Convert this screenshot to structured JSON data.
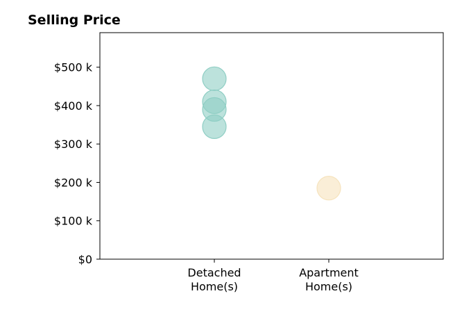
{
  "chart_data": {
    "type": "scatter",
    "title": "Selling Price",
    "xlabel": "",
    "ylabel": "",
    "categories": [
      {
        "line1": "Detached",
        "line2": "Home(s)"
      },
      {
        "line1": "Apartment",
        "line2": "Home(s)"
      }
    ],
    "yticks": [
      {
        "value": 0,
        "label": "$0"
      },
      {
        "value": 100000,
        "label": "$100 k"
      },
      {
        "value": 200000,
        "label": "$200 k"
      },
      {
        "value": 300000,
        "label": "$300 k"
      },
      {
        "value": 400000,
        "label": "$400 k"
      },
      {
        "value": 500000,
        "label": "$500 k"
      }
    ],
    "xlim": [
      -1,
      2
    ],
    "ylim": [
      0,
      590000
    ],
    "grid": false,
    "series": [
      {
        "category_index": 0,
        "color": "#8fcec4",
        "values": [
          470000,
          410000,
          390000,
          345000
        ]
      },
      {
        "category_index": 1,
        "color": "#f6e3bd",
        "values": [
          185000
        ]
      }
    ]
  }
}
